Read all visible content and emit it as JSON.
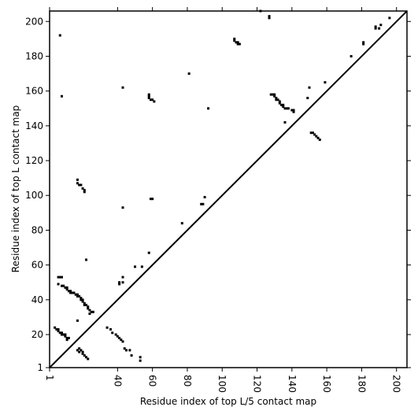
{
  "chart_data": {
    "type": "scatter",
    "x_label": "Residue index of top L/5 contact map",
    "y_label": "Residue index of top L contact map",
    "xlim": [
      1,
      206
    ],
    "ylim": [
      1,
      206
    ],
    "xticks": [
      1,
      40,
      60,
      80,
      100,
      120,
      140,
      160,
      180,
      200
    ],
    "yticks": [
      1,
      20,
      40,
      60,
      80,
      100,
      120,
      140,
      160,
      180,
      200
    ],
    "diagonal": true,
    "series": [
      {
        "color": "#000000",
        "x": [
          6,
          7,
          8,
          6,
          8,
          9,
          10,
          11,
          11,
          12,
          13,
          13,
          14,
          15,
          16,
          17,
          17,
          18,
          19,
          19,
          20,
          20,
          21,
          21,
          22,
          23,
          23,
          24,
          25,
          26,
          24,
          17,
          22,
          4,
          5,
          6,
          6,
          7,
          8,
          8,
          9,
          10,
          10,
          11,
          11,
          12,
          17,
          18,
          18,
          19,
          20,
          20,
          21,
          22,
          23,
          17,
          17,
          18,
          19,
          20,
          21,
          21,
          7,
          8,
          43,
          43,
          43,
          41,
          41,
          43,
          34,
          36,
          37,
          39,
          40,
          41,
          42,
          43,
          44,
          45,
          47,
          48,
          53,
          53,
          50,
          54,
          58,
          58,
          58,
          58,
          59,
          60,
          61,
          59,
          60,
          77,
          81,
          88,
          89,
          90,
          92,
          107,
          107,
          108,
          109,
          109,
          110,
          122,
          127,
          127,
          128,
          129,
          130,
          130,
          131,
          131,
          132,
          133,
          133,
          134,
          135,
          135,
          136,
          137,
          138,
          136,
          140,
          141,
          141,
          149,
          150,
          151,
          152,
          153,
          154,
          155,
          156,
          159,
          174,
          181,
          181,
          188,
          188,
          190,
          191,
          196
        ],
        "y": [
          53,
          53,
          53,
          49,
          48,
          48,
          47,
          47,
          46,
          45,
          45,
          44,
          44,
          44,
          43,
          43,
          42,
          42,
          41,
          40,
          40,
          39,
          38,
          37,
          37,
          36,
          35,
          34,
          33,
          33,
          32,
          28,
          63,
          24,
          23,
          23,
          22,
          21,
          21,
          20,
          20,
          20,
          19,
          18,
          17,
          18,
          11,
          12,
          10,
          11,
          10,
          9,
          8,
          7,
          6,
          107,
          109,
          106,
          106,
          104,
          103,
          102,
          192,
          157,
          162,
          93,
          53,
          50,
          49,
          50,
          24,
          23,
          21,
          20,
          19,
          18,
          17,
          16,
          12,
          11,
          11,
          8,
          7,
          5,
          59,
          59,
          67,
          158,
          157,
          156,
          155,
          155,
          154,
          98,
          98,
          84,
          170,
          95,
          95,
          99,
          150,
          190,
          189,
          188,
          188,
          187,
          187,
          206,
          203,
          202,
          158,
          158,
          158,
          157,
          156,
          155,
          155,
          154,
          153,
          152,
          152,
          151,
          150,
          150,
          150,
          142,
          149,
          148,
          149,
          156,
          162,
          136,
          136,
          135,
          134,
          133,
          132,
          165,
          180,
          188,
          187,
          197,
          196,
          196,
          198,
          202
        ]
      }
    ]
  }
}
